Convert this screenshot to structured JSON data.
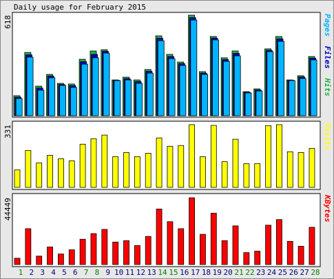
{
  "chart_data": [
    {
      "type": "bar",
      "title": "Daily usage for February 2015",
      "categories": [
        "1",
        "2",
        "3",
        "4",
        "5",
        "6",
        "7",
        "8",
        "9",
        "10",
        "11",
        "12",
        "13",
        "14",
        "15",
        "16",
        "17",
        "18",
        "19",
        "20",
        "21",
        "22",
        "23",
        "24",
        "25",
        "26",
        "27",
        "28"
      ],
      "category_colors": [
        "#008000",
        "#000080",
        "#000080",
        "#000080",
        "#000080",
        "#000080",
        "#008000",
        "#008000",
        "#000080",
        "#000080",
        "#000080",
        "#000080",
        "#000080",
        "#008000",
        "#008000",
        "#000080",
        "#000080",
        "#000080",
        "#000080",
        "#000080",
        "#008000",
        "#008000",
        "#000080",
        "#000080",
        "#000080",
        "#000080",
        "#000080",
        "#008000"
      ],
      "series": [
        {
          "name": "Hits",
          "color": "#20b040",
          "values": [
            123,
            389,
            182,
            254,
            199,
            195,
            347,
            398,
            406,
            220,
            237,
            220,
            284,
            491,
            377,
            330,
            618,
            271,
            487,
            356,
            398,
            148,
            165,
            411,
            487,
            220,
            246,
            364
          ]
        },
        {
          "name": "Files",
          "color": "#0000c0",
          "values": [
            114,
            374,
            170,
            244,
            192,
            185,
            332,
            377,
            396,
            218,
            228,
            210,
            273,
            476,
            364,
            320,
            603,
            262,
            477,
            345,
            383,
            144,
            158,
            402,
            472,
            218,
            238,
            354
          ]
        },
        {
          "name": "Pages",
          "color": "#00b4ff",
          "values": [
            106,
            360,
            157,
            233,
            186,
            174,
            317,
            356,
            385,
            216,
            220,
            199,
            262,
            461,
            351,
            309,
            588,
            254,
            466,
            334,
            368,
            140,
            152,
            394,
            457,
            216,
            229,
            343
          ]
        }
      ],
      "ylim": [
        0,
        635
      ],
      "yticks": [
        618
      ],
      "grid": false
    },
    {
      "type": "bar",
      "series": [
        {
          "name": "Visits",
          "color": "#ffff00",
          "values": [
            92,
            195,
            129,
            169,
            151,
            140,
            228,
            257,
            276,
            162,
            184,
            162,
            180,
            261,
            217,
            221,
            331,
            162,
            327,
            136,
            254,
            125,
            125,
            326,
            331,
            188,
            184,
            206
          ]
        }
      ],
      "ylim": [
        0,
        349
      ],
      "yticks": [
        331
      ],
      "grid": false
    },
    {
      "type": "bar",
      "series": [
        {
          "name": "KBytes",
          "color": "#ff0000",
          "values": [
            4211,
            23863,
            5615,
            11697,
            7018,
            9826,
            16844,
            20587,
            23394,
            14973,
            15908,
            12633,
            18716,
            36963,
            28541,
            23863,
            44449,
            20119,
            34156,
            15908,
            25734,
            7954,
            8890,
            26202,
            29945,
            15441,
            12165,
            24798
          ]
        }
      ],
      "ylim": [
        0,
        47230
      ],
      "yticks": [
        44449
      ],
      "grid": false
    }
  ]
}
